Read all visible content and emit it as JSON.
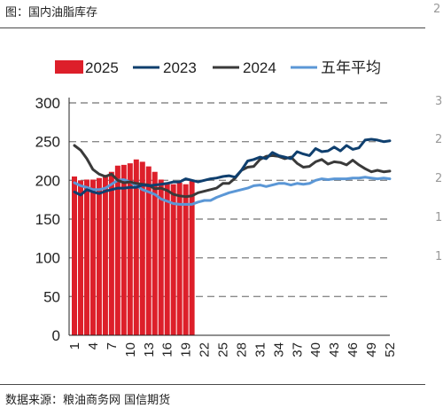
{
  "header": {
    "title": "图：国内油脂库存"
  },
  "footer": {
    "source": "数据来源：粮油商务网 国信期货"
  },
  "edge": {
    "right_glyphs": [
      "2",
      "3",
      "2",
      "2",
      "1",
      "1"
    ]
  },
  "chart_data": {
    "type": "bar",
    "title": "",
    "xlabel": "",
    "ylabel": "",
    "ylim": [
      0,
      300
    ],
    "yticks": [
      0,
      50,
      100,
      150,
      200,
      250,
      300
    ],
    "xlim": [
      1,
      52
    ],
    "xtick_labels": [
      "1",
      "4",
      "7",
      "10",
      "13",
      "16",
      "19",
      "22",
      "25",
      "28",
      "31",
      "34",
      "37",
      "40",
      "43",
      "46",
      "49",
      "52"
    ],
    "grid": "horizontal dashed",
    "legend_position": "top",
    "legend": [
      "2025",
      "2023",
      "2024",
      "五年平均"
    ],
    "colors": {
      "2025": "#dd1f2a",
      "2023": "#0f3f6e",
      "2024": "#3a3a3a",
      "五年平均": "#5b97d6"
    },
    "series": [
      {
        "name": "2025",
        "type": "bar",
        "x": [
          1,
          2,
          3,
          4,
          5,
          6,
          7,
          8,
          9,
          10,
          11,
          12,
          13,
          14,
          15,
          16,
          17,
          18,
          19,
          20
        ],
        "values": [
          205,
          200,
          201,
          201,
          203,
          207,
          211,
          219,
          220,
          222,
          227,
          224,
          218,
          211,
          201,
          197,
          195,
          197,
          195,
          199
        ]
      },
      {
        "name": "2023",
        "type": "line",
        "x": [
          1,
          2,
          3,
          4,
          5,
          6,
          7,
          8,
          9,
          10,
          11,
          12,
          13,
          14,
          15,
          16,
          17,
          18,
          19,
          20,
          21,
          22,
          23,
          24,
          25,
          26,
          27,
          28,
          29,
          30,
          31,
          32,
          33,
          34,
          35,
          36,
          37,
          38,
          39,
          40,
          41,
          42,
          43,
          44,
          45,
          46,
          47,
          48,
          49,
          50,
          51,
          52
        ],
        "values": [
          185,
          181,
          188,
          185,
          183,
          186,
          188,
          190,
          190,
          191,
          191,
          194,
          193,
          194,
          195,
          196,
          198,
          198,
          202,
          200,
          198,
          200,
          202,
          203,
          205,
          206,
          204,
          213,
          225,
          227,
          230,
          228,
          236,
          232,
          230,
          228,
          237,
          234,
          232,
          241,
          237,
          238,
          243,
          238,
          245,
          240,
          242,
          252,
          253,
          252,
          250,
          251
        ]
      },
      {
        "name": "2024",
        "type": "line",
        "x": [
          1,
          2,
          3,
          4,
          5,
          6,
          7,
          8,
          9,
          10,
          11,
          12,
          13,
          14,
          15,
          16,
          17,
          18,
          19,
          20,
          21,
          22,
          23,
          24,
          25,
          26,
          27,
          28,
          29,
          30,
          31,
          32,
          33,
          34,
          35,
          36,
          37,
          38,
          39,
          40,
          41,
          42,
          43,
          44,
          45,
          46,
          47,
          48,
          49,
          50,
          51,
          52
        ],
        "values": [
          245,
          239,
          228,
          214,
          208,
          205,
          208,
          200,
          197,
          198,
          196,
          195,
          194,
          189,
          190,
          187,
          182,
          180,
          179,
          180,
          184,
          186,
          188,
          190,
          196,
          196,
          203,
          213,
          217,
          218,
          227,
          231,
          232,
          231,
          228,
          230,
          222,
          217,
          218,
          224,
          227,
          221,
          224,
          223,
          220,
          226,
          220,
          215,
          211,
          213,
          211,
          212
        ]
      },
      {
        "name": "五年平均",
        "type": "line",
        "x": [
          1,
          2,
          3,
          4,
          5,
          6,
          7,
          8,
          9,
          10,
          11,
          12,
          13,
          14,
          15,
          16,
          17,
          18,
          19,
          20,
          21,
          22,
          23,
          24,
          25,
          26,
          27,
          28,
          29,
          30,
          31,
          32,
          33,
          34,
          35,
          36,
          37,
          38,
          39,
          40,
          41,
          42,
          43,
          44,
          45,
          46,
          47,
          48,
          49,
          50,
          51,
          52
        ],
        "values": [
          197,
          193,
          191,
          188,
          188,
          190,
          195,
          200,
          201,
          198,
          193,
          188,
          185,
          182,
          176,
          173,
          170,
          169,
          169,
          169,
          172,
          174,
          174,
          178,
          181,
          184,
          186,
          188,
          190,
          193,
          194,
          192,
          194,
          196,
          196,
          194,
          196,
          195,
          196,
          200,
          202,
          201,
          202,
          202,
          202,
          203,
          203,
          204,
          203,
          202,
          203,
          202
        ]
      }
    ]
  }
}
